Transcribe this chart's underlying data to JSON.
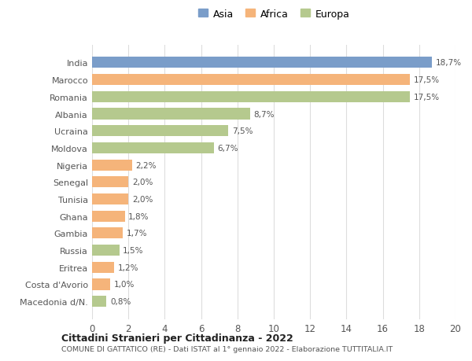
{
  "categories": [
    "Macedonia d/N.",
    "Costa d'Avorio",
    "Eritrea",
    "Russia",
    "Gambia",
    "Ghana",
    "Tunisia",
    "Senegal",
    "Nigeria",
    "Moldova",
    "Ucraina",
    "Albania",
    "Romania",
    "Marocco",
    "India"
  ],
  "values": [
    0.8,
    1.0,
    1.2,
    1.5,
    1.7,
    1.8,
    2.0,
    2.0,
    2.2,
    6.7,
    7.5,
    8.7,
    17.5,
    17.5,
    18.7
  ],
  "labels": [
    "0,8%",
    "1,0%",
    "1,2%",
    "1,5%",
    "1,7%",
    "1,8%",
    "2,0%",
    "2,0%",
    "2,2%",
    "6,7%",
    "7,5%",
    "8,7%",
    "17,5%",
    "17,5%",
    "18,7%"
  ],
  "colors": [
    "#b5c98e",
    "#f5b47a",
    "#f5b47a",
    "#b5c98e",
    "#f5b47a",
    "#f5b47a",
    "#f5b47a",
    "#f5b47a",
    "#f5b47a",
    "#b5c98e",
    "#b5c98e",
    "#b5c98e",
    "#b5c98e",
    "#f5b47a",
    "#7a9dc9"
  ],
  "legend_labels": [
    "Asia",
    "Africa",
    "Europa"
  ],
  "legend_colors": [
    "#7a9dc9",
    "#f5b47a",
    "#b5c98e"
  ],
  "title": "Cittadini Stranieri per Cittadinanza - 2022",
  "subtitle": "COMUNE DI GATTATICO (RE) - Dati ISTAT al 1° gennaio 2022 - Elaborazione TUTTITALIA.IT",
  "xlim": [
    0,
    20
  ],
  "xticks": [
    0,
    2,
    4,
    6,
    8,
    10,
    12,
    14,
    16,
    18,
    20
  ],
  "background_color": "#ffffff",
  "bar_height": 0.65,
  "grid_color": "#dddddd"
}
